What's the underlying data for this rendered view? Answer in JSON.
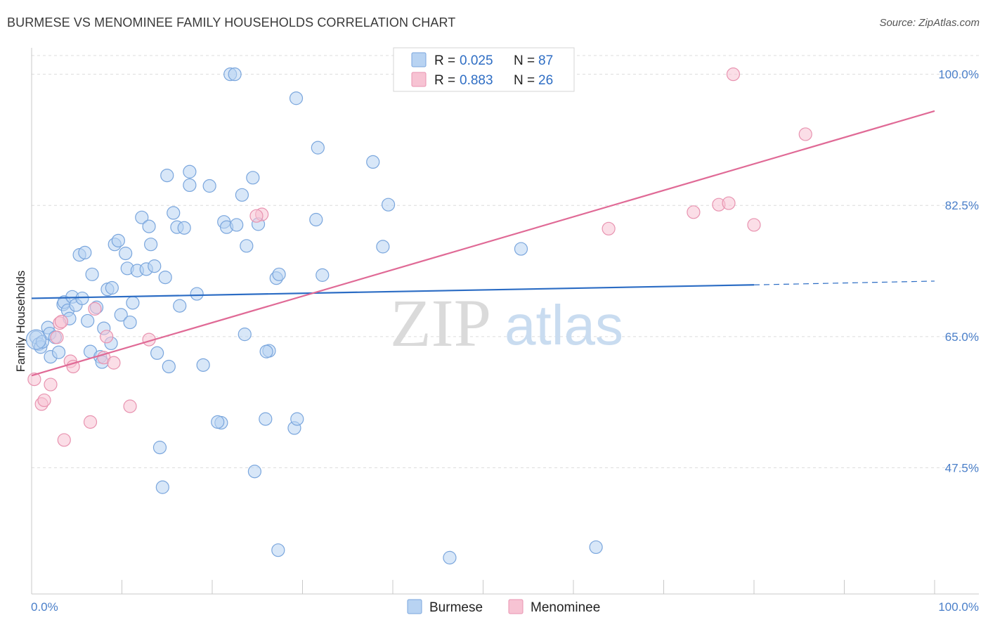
{
  "header": {
    "title": "BURMESE VS MENOMINEE FAMILY HOUSEHOLDS CORRELATION CHART",
    "source": "Source: ZipAtlas.com"
  },
  "colors": {
    "burmese_fill": "#b8d3f2",
    "burmese_stroke": "#7aa6dd",
    "burmese_line": "#2b6cc4",
    "menominee_fill": "#f7c3d3",
    "menominee_stroke": "#e893b0",
    "menominee_line": "#e06a96",
    "axis_tick": "#4a7fc9",
    "grid": "#dcdcdc"
  },
  "watermark": {
    "zip": "ZIP",
    "atlas": "atlas"
  },
  "chart_data": {
    "type": "scatter",
    "title": "BURMESE VS MENOMINEE FAMILY HOUSEHOLDS CORRELATION CHART",
    "xlabel": "",
    "ylabel": "Family Households",
    "xlim": [
      0,
      100
    ],
    "ylim": [
      31.5,
      102.5
    ],
    "x_tick_labels": [
      "0.0%",
      "100.0%"
    ],
    "y_ticks": [
      47.5,
      65.0,
      82.5,
      100.0
    ],
    "y_tick_labels": [
      "47.5%",
      "65.0%",
      "82.5%",
      "100.0%"
    ],
    "legend": {
      "position": "top-center",
      "entries": [
        {
          "name": "Burmese",
          "r_label": "R =",
          "r_value": "0.025",
          "n_label": "N =",
          "n_value": "87"
        },
        {
          "name": "Menominee",
          "r_label": "R =",
          "r_value": "0.883",
          "n_label": "N =",
          "n_value": "26"
        }
      ]
    },
    "series": [
      {
        "name": "Burmese",
        "trend": {
          "x0": 0,
          "y0": 70.1,
          "x1": 80,
          "y1": 71.9,
          "dash_to_x": 100,
          "dash_to_y": 72.4
        },
        "points": [
          [
            0.5,
            64.9
          ],
          [
            0.8,
            64.0
          ],
          [
            1.0,
            63.6
          ],
          [
            1.2,
            64.3
          ],
          [
            1.8,
            66.2
          ],
          [
            2.0,
            65.4
          ],
          [
            2.1,
            62.3
          ],
          [
            2.6,
            64.9
          ],
          [
            3.0,
            62.9
          ],
          [
            3.5,
            69.3
          ],
          [
            3.6,
            69.6
          ],
          [
            4.0,
            68.5
          ],
          [
            4.2,
            67.4
          ],
          [
            4.5,
            70.3
          ],
          [
            4.9,
            69.2
          ],
          [
            5.3,
            75.9
          ],
          [
            5.6,
            70.1
          ],
          [
            5.9,
            76.2
          ],
          [
            6.2,
            67.1
          ],
          [
            6.5,
            63.0
          ],
          [
            6.7,
            73.3
          ],
          [
            7.2,
            68.9
          ],
          [
            7.6,
            62.3
          ],
          [
            7.8,
            61.6
          ],
          [
            8.0,
            66.1
          ],
          [
            8.4,
            71.3
          ],
          [
            8.8,
            64.1
          ],
          [
            8.9,
            71.5
          ],
          [
            9.2,
            77.3
          ],
          [
            9.6,
            77.8
          ],
          [
            9.9,
            67.9
          ],
          [
            10.4,
            76.1
          ],
          [
            10.6,
            74.1
          ],
          [
            10.9,
            66.9
          ],
          [
            11.2,
            69.5
          ],
          [
            11.7,
            73.8
          ],
          [
            12.2,
            80.9
          ],
          [
            12.7,
            74.0
          ],
          [
            13.0,
            79.7
          ],
          [
            13.2,
            77.3
          ],
          [
            13.6,
            74.4
          ],
          [
            13.9,
            62.8
          ],
          [
            14.2,
            50.2
          ],
          [
            14.5,
            44.9
          ],
          [
            14.8,
            72.9
          ],
          [
            15.0,
            86.5
          ],
          [
            15.2,
            61.0
          ],
          [
            15.7,
            81.5
          ],
          [
            16.1,
            79.6
          ],
          [
            16.4,
            69.1
          ],
          [
            16.9,
            79.5
          ],
          [
            17.5,
            87.0
          ],
          [
            17.5,
            85.2
          ],
          [
            18.3,
            70.7
          ],
          [
            19.0,
            61.2
          ],
          [
            19.7,
            85.1
          ],
          [
            21.0,
            53.5
          ],
          [
            21.3,
            80.3
          ],
          [
            21.6,
            79.6
          ],
          [
            22.0,
            100.0
          ],
          [
            22.5,
            100.0
          ],
          [
            22.7,
            79.9
          ],
          [
            23.3,
            83.9
          ],
          [
            23.6,
            65.3
          ],
          [
            23.8,
            77.1
          ],
          [
            24.5,
            86.2
          ],
          [
            24.7,
            47.0
          ],
          [
            25.1,
            80.0
          ],
          [
            25.9,
            54.0
          ],
          [
            26.3,
            63.1
          ],
          [
            27.1,
            72.8
          ],
          [
            27.3,
            36.5
          ],
          [
            27.4,
            73.3
          ],
          [
            29.1,
            52.8
          ],
          [
            29.3,
            96.8
          ],
          [
            29.4,
            54.0
          ],
          [
            31.5,
            80.6
          ],
          [
            31.7,
            90.2
          ],
          [
            32.2,
            73.2
          ],
          [
            37.8,
            88.3
          ],
          [
            38.9,
            77.0
          ],
          [
            39.5,
            82.6
          ],
          [
            46.3,
            35.5
          ],
          [
            54.2,
            76.7
          ],
          [
            62.5,
            36.9
          ],
          [
            20.6,
            53.6
          ],
          [
            26.0,
            63.0
          ]
        ]
      },
      {
        "name": "Menominee",
        "trend": {
          "x0": 0,
          "y0": 59.8,
          "x1": 100,
          "y1": 95.1
        },
        "points": [
          [
            0.3,
            59.3
          ],
          [
            1.1,
            56.0
          ],
          [
            1.4,
            56.5
          ],
          [
            2.1,
            58.6
          ],
          [
            3.1,
            66.8
          ],
          [
            3.3,
            67.0
          ],
          [
            3.6,
            51.2
          ],
          [
            4.3,
            61.7
          ],
          [
            4.6,
            61.0
          ],
          [
            6.5,
            53.6
          ],
          [
            7.0,
            68.7
          ],
          [
            8.0,
            62.2
          ],
          [
            8.3,
            65.0
          ],
          [
            9.1,
            61.5
          ],
          [
            10.9,
            55.7
          ],
          [
            13.0,
            64.6
          ],
          [
            25.5,
            81.3
          ],
          [
            63.9,
            79.4
          ],
          [
            73.3,
            81.6
          ],
          [
            76.1,
            82.6
          ],
          [
            77.2,
            82.8
          ],
          [
            77.7,
            100.0
          ],
          [
            80.0,
            79.9
          ],
          [
            85.7,
            92.0
          ],
          [
            2.8,
            64.9
          ],
          [
            24.9,
            81.1
          ]
        ]
      }
    ],
    "bottom_legend": [
      "Burmese",
      "Menominee"
    ]
  }
}
